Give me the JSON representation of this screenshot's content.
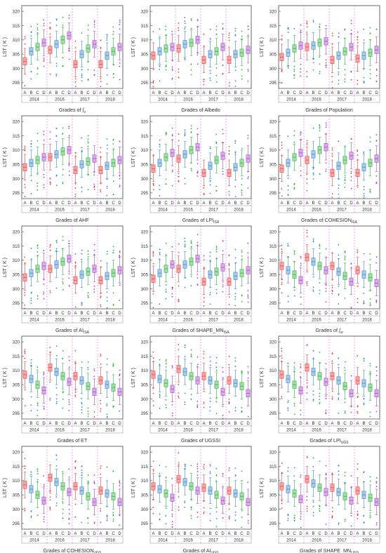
{
  "figure": {
    "y_label": "LST ( K )",
    "years": [
      "2014",
      "2016",
      "2017",
      "2018"
    ],
    "grades": [
      "A",
      "B",
      "C",
      "D"
    ],
    "y_ticks": [
      295,
      300,
      305,
      310,
      315,
      320
    ],
    "grade_colors": {
      "A": "#e8434a",
      "B": "#3a88c8",
      "C": "#2fb04a",
      "D": "#a64bc6"
    },
    "box_fill_colors": {
      "A": "#f3a6a6",
      "B": "#a9cbe8",
      "C": "#a6dca9",
      "D": "#d6aee4"
    }
  },
  "chart_data": [
    {
      "type": "box",
      "panel_id": "fv",
      "xlabel_prefix": "Grades of ",
      "xlabel_symbol": "f",
      "xlabel_sub": "v",
      "ylim": [
        293,
        322
      ],
      "series": [
        {
          "year": "2014",
          "medians": [
            302.5,
            306.0,
            307.5,
            309.0
          ]
        },
        {
          "year": "2016",
          "medians": [
            306.5,
            308.5,
            310.0,
            311.5
          ]
        },
        {
          "year": "2017",
          "medians": [
            301.5,
            305.0,
            307.0,
            308.5
          ]
        },
        {
          "year": "2018",
          "medians": [
            301.5,
            304.5,
            306.0,
            307.5
          ]
        }
      ]
    },
    {
      "type": "box",
      "panel_id": "albedo",
      "xlabel_prefix": "Grades of  Albedo",
      "xlabel_symbol": "",
      "xlabel_sub": "",
      "ylim": [
        293,
        322
      ],
      "series": [
        {
          "year": "2014",
          "medians": [
            304.5,
            306.0,
            307.0,
            307.5
          ]
        },
        {
          "year": "2016",
          "medians": [
            307.0,
            308.5,
            309.0,
            310.0
          ]
        },
        {
          "year": "2017",
          "medians": [
            303.0,
            305.0,
            306.0,
            307.5
          ]
        },
        {
          "year": "2018",
          "medians": [
            303.0,
            305.0,
            305.5,
            306.5
          ]
        }
      ]
    },
    {
      "type": "box",
      "panel_id": "population",
      "xlabel_prefix": "Grades of Population",
      "xlabel_symbol": "",
      "xlabel_sub": "",
      "ylim": [
        293,
        322
      ],
      "series": [
        {
          "year": "2014",
          "medians": [
            304.0,
            305.5,
            307.0,
            308.0
          ]
        },
        {
          "year": "2016",
          "medians": [
            307.5,
            308.0,
            309.0,
            309.5
          ]
        },
        {
          "year": "2017",
          "medians": [
            303.0,
            304.5,
            306.0,
            307.5
          ]
        },
        {
          "year": "2018",
          "medians": [
            303.5,
            304.5,
            305.5,
            306.5
          ]
        }
      ]
    },
    {
      "type": "box",
      "panel_id": "ahf",
      "xlabel_prefix": "Grades of   AHF",
      "xlabel_symbol": "",
      "xlabel_sub": "",
      "ylim": [
        293,
        322
      ],
      "series": [
        {
          "year": "2014",
          "medians": [
            304.0,
            305.5,
            306.5,
            307.5
          ]
        },
        {
          "year": "2016",
          "medians": [
            307.5,
            308.5,
            309.5,
            310.0
          ]
        },
        {
          "year": "2017",
          "medians": [
            303.0,
            305.0,
            306.0,
            307.0
          ]
        },
        {
          "year": "2018",
          "medians": [
            303.0,
            304.5,
            305.5,
            306.5
          ]
        }
      ]
    },
    {
      "type": "box",
      "panel_id": "lpi-isa",
      "xlabel_prefix": "Grades of LPI",
      "xlabel_symbol": "",
      "xlabel_sub": "ISA",
      "ylim": [
        293,
        322
      ],
      "series": [
        {
          "year": "2014",
          "medians": [
            303.5,
            305.5,
            307.5,
            309.0
          ]
        },
        {
          "year": "2016",
          "medians": [
            307.0,
            308.5,
            310.0,
            311.0
          ]
        },
        {
          "year": "2017",
          "medians": [
            302.0,
            304.5,
            306.5,
            308.0
          ]
        },
        {
          "year": "2018",
          "medians": [
            302.0,
            304.0,
            305.5,
            307.0
          ]
        }
      ]
    },
    {
      "type": "box",
      "panel_id": "cohesion-isa",
      "xlabel_prefix": "Grades of COHESION",
      "xlabel_symbol": "",
      "xlabel_sub": "ISA",
      "ylim": [
        293,
        322
      ],
      "series": [
        {
          "year": "2014",
          "medians": [
            303.5,
            305.5,
            307.5,
            309.0
          ]
        },
        {
          "year": "2016",
          "medians": [
            306.5,
            308.5,
            310.0,
            311.0
          ]
        },
        {
          "year": "2017",
          "medians": [
            302.0,
            304.5,
            306.5,
            308.0
          ]
        },
        {
          "year": "2018",
          "medians": [
            302.0,
            304.0,
            305.5,
            307.0
          ]
        }
      ]
    },
    {
      "type": "box",
      "panel_id": "ai-isa",
      "xlabel_prefix": "Grades of AI",
      "xlabel_symbol": "",
      "xlabel_sub": "ISA",
      "ylim": [
        293,
        322
      ],
      "series": [
        {
          "year": "2014",
          "medians": [
            304.0,
            305.5,
            307.0,
            308.0
          ]
        },
        {
          "year": "2016",
          "medians": [
            307.0,
            308.5,
            309.5,
            310.5
          ]
        },
        {
          "year": "2017",
          "medians": [
            303.0,
            305.0,
            306.0,
            307.0
          ]
        },
        {
          "year": "2018",
          "medians": [
            303.0,
            304.5,
            305.5,
            306.5
          ]
        }
      ]
    },
    {
      "type": "box",
      "panel_id": "shape-mn-isa",
      "xlabel_prefix": "Grades of SHAPE_MN",
      "xlabel_symbol": "",
      "xlabel_sub": "ISA",
      "ylim": [
        293,
        322
      ],
      "series": [
        {
          "year": "2014",
          "medians": [
            303.5,
            305.5,
            307.0,
            308.5
          ]
        },
        {
          "year": "2016",
          "medians": [
            307.0,
            308.5,
            309.5,
            310.5
          ]
        },
        {
          "year": "2017",
          "medians": [
            302.5,
            305.0,
            306.0,
            307.5
          ]
        },
        {
          "year": "2018",
          "medians": [
            302.5,
            304.5,
            305.5,
            306.5
          ]
        }
      ]
    },
    {
      "type": "box",
      "panel_id": "fw",
      "xlabel_prefix": "Grades of ",
      "xlabel_symbol": "f",
      "xlabel_sub": "w",
      "ylim": [
        293,
        322
      ],
      "series": [
        {
          "year": "2014",
          "medians": [
            308.0,
            306.5,
            305.0,
            303.0
          ]
        },
        {
          "year": "2016",
          "medians": [
            311.0,
            309.5,
            308.0,
            306.5
          ]
        },
        {
          "year": "2017",
          "medians": [
            308.0,
            306.0,
            304.5,
            302.5
          ]
        },
        {
          "year": "2018",
          "medians": [
            306.5,
            305.0,
            304.0,
            302.0
          ]
        }
      ]
    },
    {
      "type": "box",
      "panel_id": "et",
      "xlabel_prefix": "Grades of   ET",
      "xlabel_symbol": "",
      "xlabel_sub": "",
      "ylim": [
        293,
        322
      ],
      "series": [
        {
          "year": "2014",
          "medians": [
            308.5,
            307.0,
            305.0,
            303.0
          ]
        },
        {
          "year": "2016",
          "medians": [
            311.0,
            309.5,
            308.0,
            306.0
          ]
        },
        {
          "year": "2017",
          "medians": [
            308.0,
            306.5,
            304.5,
            302.5
          ]
        },
        {
          "year": "2018",
          "medians": [
            306.5,
            305.0,
            304.0,
            302.5
          ]
        }
      ]
    },
    {
      "type": "box",
      "panel_id": "ugssi",
      "xlabel_prefix": "Grades of   UGSSI",
      "xlabel_symbol": "",
      "xlabel_sub": "",
      "ylim": [
        293,
        322
      ],
      "series": [
        {
          "year": "2014",
          "medians": [
            308.5,
            307.0,
            305.5,
            303.5
          ]
        },
        {
          "year": "2016",
          "medians": [
            310.5,
            309.5,
            308.0,
            306.5
          ]
        },
        {
          "year": "2017",
          "medians": [
            308.0,
            306.5,
            305.0,
            302.5
          ]
        },
        {
          "year": "2018",
          "medians": [
            306.5,
            305.5,
            304.5,
            302.0
          ]
        }
      ]
    },
    {
      "type": "box",
      "panel_id": "lpi-ugs",
      "xlabel_prefix": "Grades of LPI",
      "xlabel_symbol": "",
      "xlabel_sub": "UGS",
      "ylim": [
        293,
        322
      ],
      "series": [
        {
          "year": "2014",
          "medians": [
            308.5,
            307.0,
            305.0,
            303.0
          ]
        },
        {
          "year": "2016",
          "medians": [
            311.0,
            309.5,
            308.0,
            306.0
          ]
        },
        {
          "year": "2017",
          "medians": [
            308.0,
            306.5,
            304.5,
            302.0
          ]
        },
        {
          "year": "2018",
          "medians": [
            306.5,
            305.5,
            304.0,
            302.0
          ]
        }
      ]
    },
    {
      "type": "box",
      "panel_id": "cohesion-ugs",
      "xlabel_prefix": "Grades of COHESION",
      "xlabel_symbol": "",
      "xlabel_sub": "UGS",
      "ylim": [
        293,
        322
      ],
      "series": [
        {
          "year": "2014",
          "medians": [
            308.5,
            307.0,
            305.0,
            303.0
          ]
        },
        {
          "year": "2016",
          "medians": [
            311.0,
            309.5,
            308.0,
            306.0
          ]
        },
        {
          "year": "2017",
          "medians": [
            308.0,
            306.5,
            304.5,
            302.5
          ]
        },
        {
          "year": "2018",
          "medians": [
            306.5,
            305.5,
            304.5,
            302.5
          ]
        }
      ]
    },
    {
      "type": "box",
      "panel_id": "ai-ugs",
      "xlabel_prefix": "Grades of AI",
      "xlabel_symbol": "",
      "xlabel_sub": "UGS",
      "ylim": [
        293,
        322
      ],
      "series": [
        {
          "year": "2014",
          "medians": [
            308.0,
            307.0,
            305.5,
            304.0
          ]
        },
        {
          "year": "2016",
          "medians": [
            310.5,
            309.5,
            308.0,
            306.5
          ]
        },
        {
          "year": "2017",
          "medians": [
            307.5,
            306.5,
            305.0,
            303.0
          ]
        },
        {
          "year": "2018",
          "medians": [
            306.5,
            305.5,
            304.5,
            302.5
          ]
        }
      ]
    },
    {
      "type": "box",
      "panel_id": "shape-mn-ugs",
      "xlabel_prefix": "Grades of SHAPE_MN",
      "xlabel_symbol": "",
      "xlabel_sub": "UGS",
      "ylim": [
        293,
        322
      ],
      "series": [
        {
          "year": "2014",
          "medians": [
            308.0,
            307.0,
            305.5,
            303.5
          ]
        },
        {
          "year": "2016",
          "medians": [
            310.5,
            309.0,
            307.5,
            306.0
          ]
        },
        {
          "year": "2017",
          "medians": [
            307.5,
            306.0,
            304.5,
            303.0
          ]
        },
        {
          "year": "2018",
          "medians": [
            306.5,
            305.0,
            304.0,
            302.5
          ]
        }
      ]
    }
  ]
}
